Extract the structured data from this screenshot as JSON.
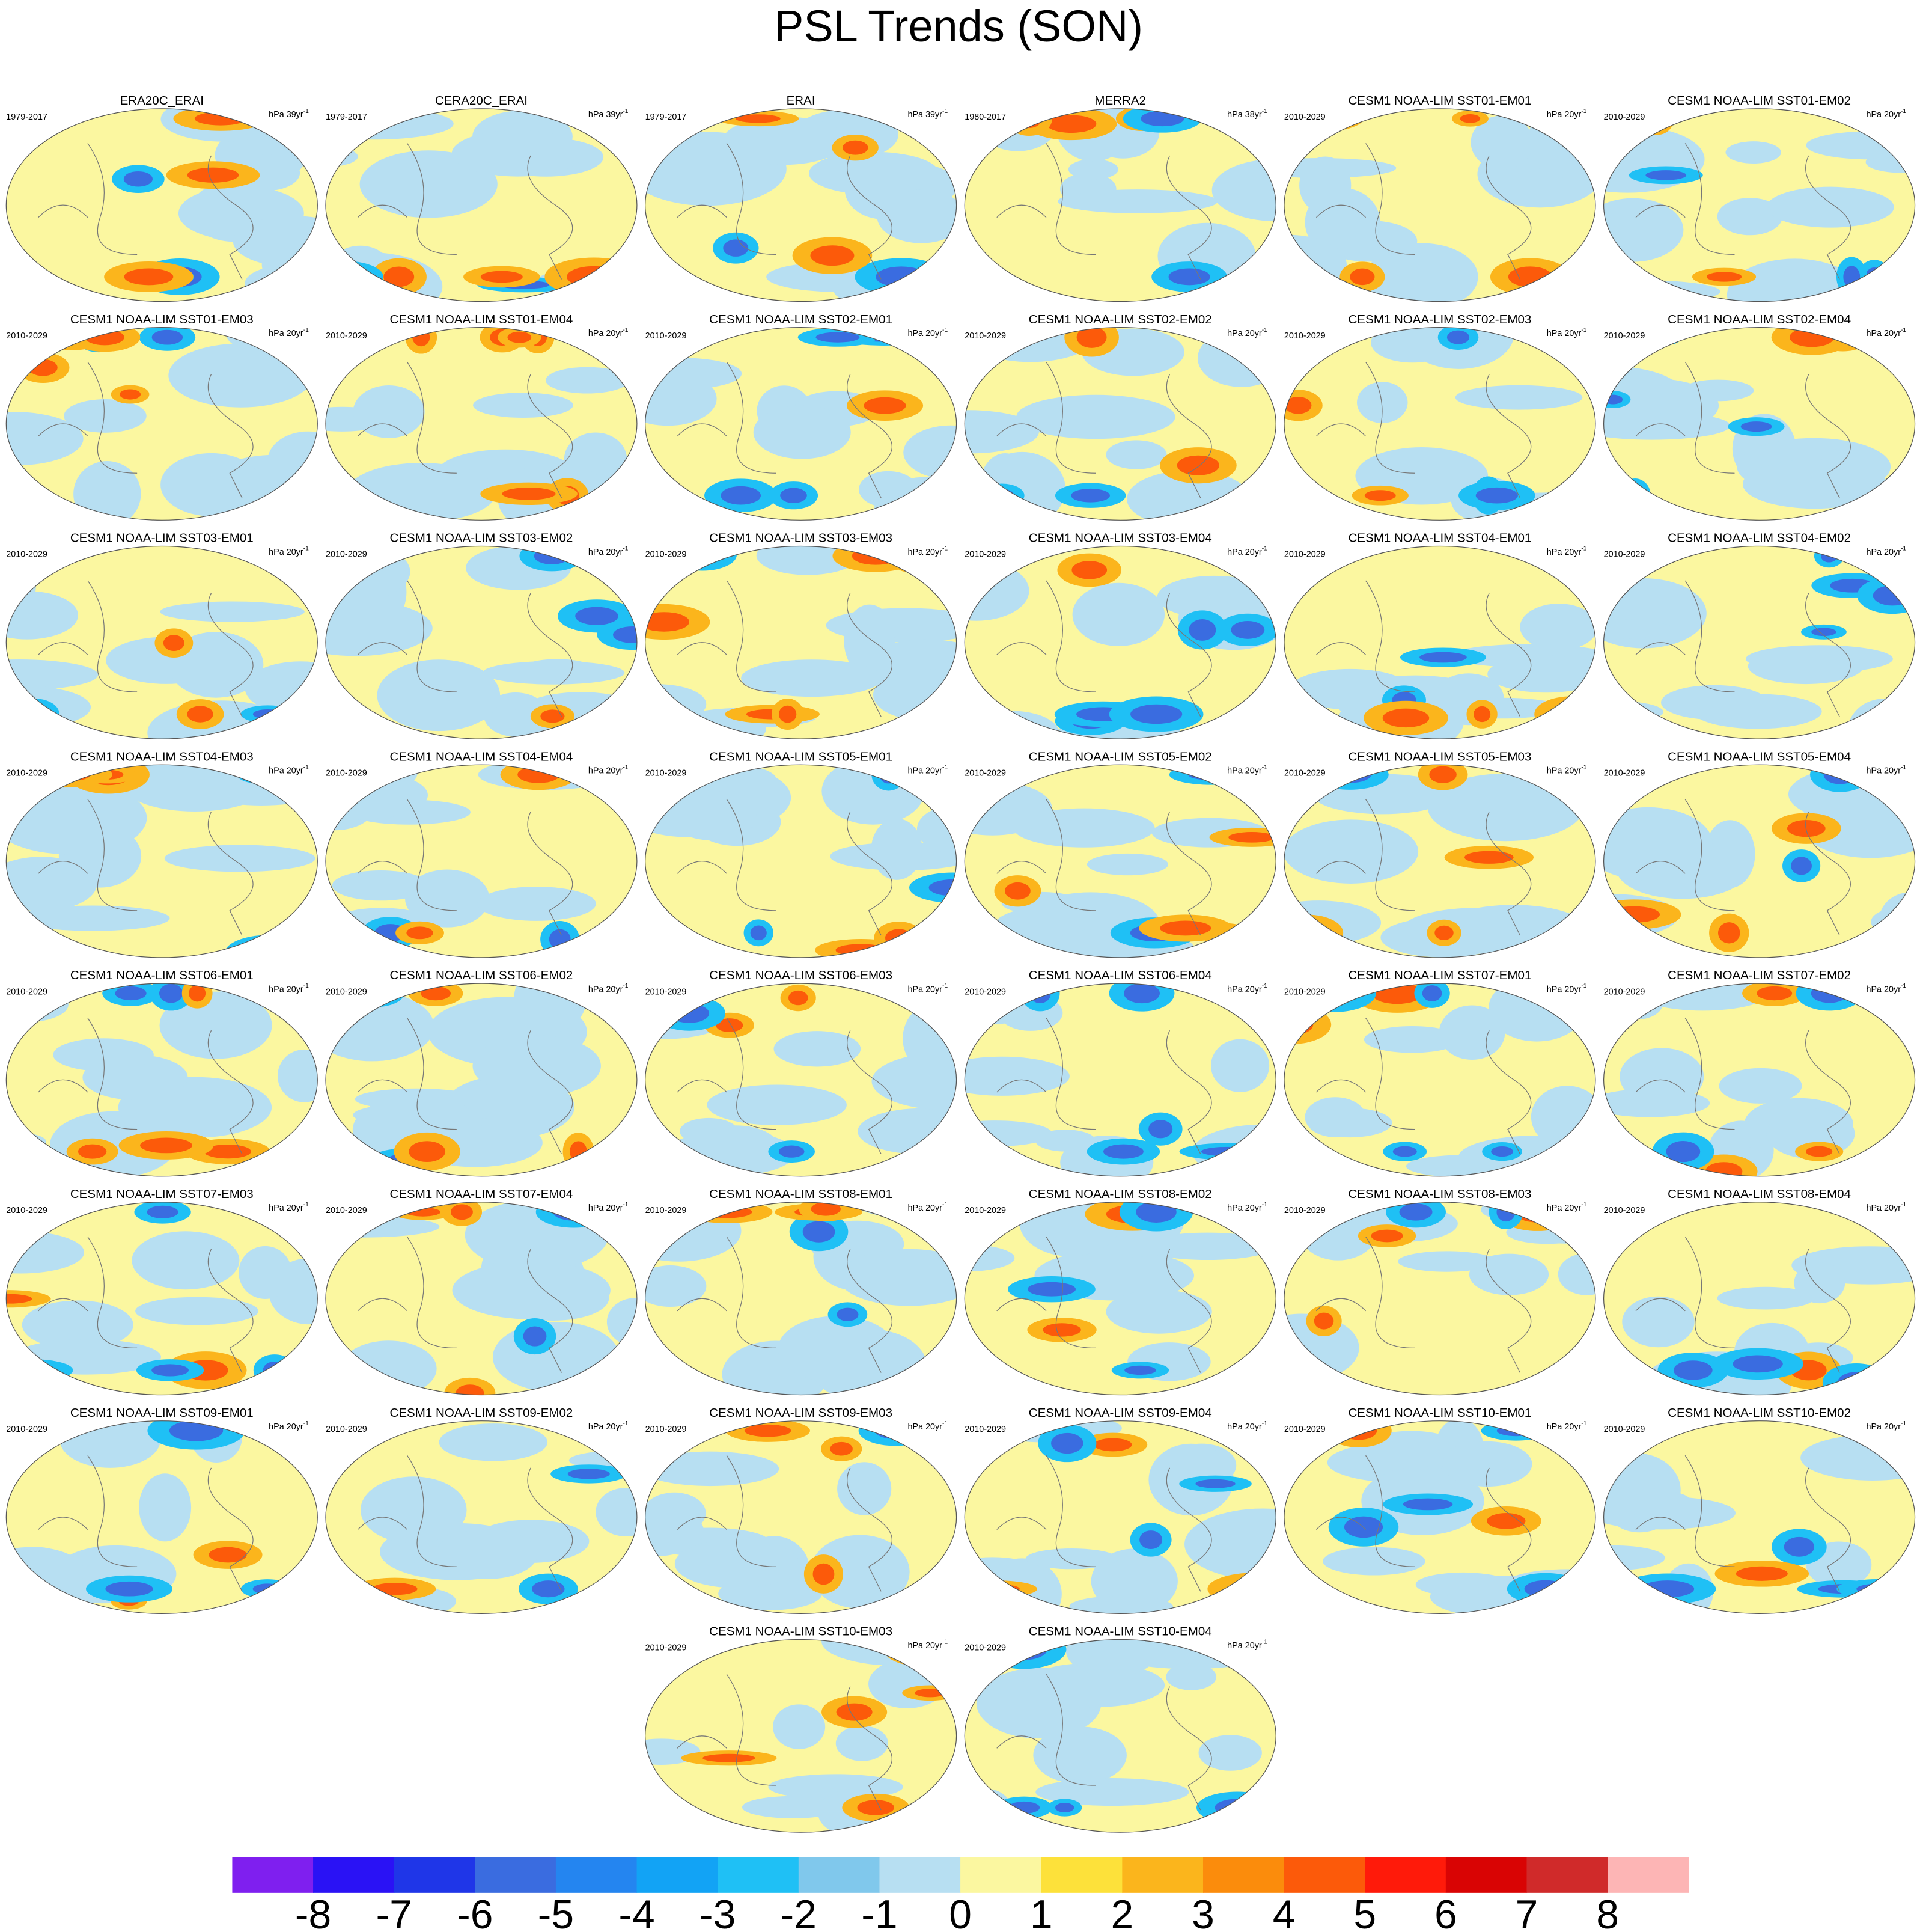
{
  "title": "PSL Trends (SON)",
  "panels": [
    {
      "title": "ERA20C_ERAI",
      "period": "1979-2017",
      "units": "hPa 39yr",
      "exp": "-1"
    },
    {
      "title": "CERA20C_ERAI",
      "period": "1979-2017",
      "units": "hPa 39yr",
      "exp": "-1"
    },
    {
      "title": "ERAI",
      "period": "1979-2017",
      "units": "hPa 39yr",
      "exp": "-1"
    },
    {
      "title": "MERRA2",
      "period": "1980-2017",
      "units": "hPa 38yr",
      "exp": "-1"
    },
    {
      "title": "CESM1 NOAA-LIM SST01-EM01",
      "period": "2010-2029",
      "units": "hPa 20yr",
      "exp": "-1"
    },
    {
      "title": "CESM1 NOAA-LIM SST01-EM02",
      "period": "2010-2029",
      "units": "hPa 20yr",
      "exp": "-1"
    },
    {
      "title": "CESM1 NOAA-LIM SST01-EM03",
      "period": "2010-2029",
      "units": "hPa 20yr",
      "exp": "-1"
    },
    {
      "title": "CESM1 NOAA-LIM SST01-EM04",
      "period": "2010-2029",
      "units": "hPa 20yr",
      "exp": "-1"
    },
    {
      "title": "CESM1 NOAA-LIM SST02-EM01",
      "period": "2010-2029",
      "units": "hPa 20yr",
      "exp": "-1"
    },
    {
      "title": "CESM1 NOAA-LIM SST02-EM02",
      "period": "2010-2029",
      "units": "hPa 20yr",
      "exp": "-1"
    },
    {
      "title": "CESM1 NOAA-LIM SST02-EM03",
      "period": "2010-2029",
      "units": "hPa 20yr",
      "exp": "-1"
    },
    {
      "title": "CESM1 NOAA-LIM SST02-EM04",
      "period": "2010-2029",
      "units": "hPa 20yr",
      "exp": "-1"
    },
    {
      "title": "CESM1 NOAA-LIM SST03-EM01",
      "period": "2010-2029",
      "units": "hPa 20yr",
      "exp": "-1"
    },
    {
      "title": "CESM1 NOAA-LIM SST03-EM02",
      "period": "2010-2029",
      "units": "hPa 20yr",
      "exp": "-1"
    },
    {
      "title": "CESM1 NOAA-LIM SST03-EM03",
      "period": "2010-2029",
      "units": "hPa 20yr",
      "exp": "-1"
    },
    {
      "title": "CESM1 NOAA-LIM SST03-EM04",
      "period": "2010-2029",
      "units": "hPa 20yr",
      "exp": "-1"
    },
    {
      "title": "CESM1 NOAA-LIM SST04-EM01",
      "period": "2010-2029",
      "units": "hPa 20yr",
      "exp": "-1"
    },
    {
      "title": "CESM1 NOAA-LIM SST04-EM02",
      "period": "2010-2029",
      "units": "hPa 20yr",
      "exp": "-1"
    },
    {
      "title": "CESM1 NOAA-LIM SST04-EM03",
      "period": "2010-2029",
      "units": "hPa 20yr",
      "exp": "-1"
    },
    {
      "title": "CESM1 NOAA-LIM SST04-EM04",
      "period": "2010-2029",
      "units": "hPa 20yr",
      "exp": "-1"
    },
    {
      "title": "CESM1 NOAA-LIM SST05-EM01",
      "period": "2010-2029",
      "units": "hPa 20yr",
      "exp": "-1"
    },
    {
      "title": "CESM1 NOAA-LIM SST05-EM02",
      "period": "2010-2029",
      "units": "hPa 20yr",
      "exp": "-1"
    },
    {
      "title": "CESM1 NOAA-LIM SST05-EM03",
      "period": "2010-2029",
      "units": "hPa 20yr",
      "exp": "-1"
    },
    {
      "title": "CESM1 NOAA-LIM SST05-EM04",
      "period": "2010-2029",
      "units": "hPa 20yr",
      "exp": "-1"
    },
    {
      "title": "CESM1 NOAA-LIM SST06-EM01",
      "period": "2010-2029",
      "units": "hPa 20yr",
      "exp": "-1"
    },
    {
      "title": "CESM1 NOAA-LIM SST06-EM02",
      "period": "2010-2029",
      "units": "hPa 20yr",
      "exp": "-1"
    },
    {
      "title": "CESM1 NOAA-LIM SST06-EM03",
      "period": "2010-2029",
      "units": "hPa 20yr",
      "exp": "-1"
    },
    {
      "title": "CESM1 NOAA-LIM SST06-EM04",
      "period": "2010-2029",
      "units": "hPa 20yr",
      "exp": "-1"
    },
    {
      "title": "CESM1 NOAA-LIM SST07-EM01",
      "period": "2010-2029",
      "units": "hPa 20yr",
      "exp": "-1"
    },
    {
      "title": "CESM1 NOAA-LIM SST07-EM02",
      "period": "2010-2029",
      "units": "hPa 20yr",
      "exp": "-1"
    },
    {
      "title": "CESM1 NOAA-LIM SST07-EM03",
      "period": "2010-2029",
      "units": "hPa 20yr",
      "exp": "-1"
    },
    {
      "title": "CESM1 NOAA-LIM SST07-EM04",
      "period": "2010-2029",
      "units": "hPa 20yr",
      "exp": "-1"
    },
    {
      "title": "CESM1 NOAA-LIM SST08-EM01",
      "period": "2010-2029",
      "units": "hPa 20yr",
      "exp": "-1"
    },
    {
      "title": "CESM1 NOAA-LIM SST08-EM02",
      "period": "2010-2029",
      "units": "hPa 20yr",
      "exp": "-1"
    },
    {
      "title": "CESM1 NOAA-LIM SST08-EM03",
      "period": "2010-2029",
      "units": "hPa 20yr",
      "exp": "-1"
    },
    {
      "title": "CESM1 NOAA-LIM SST08-EM04",
      "period": "2010-2029",
      "units": "hPa 20yr",
      "exp": "-1"
    },
    {
      "title": "CESM1 NOAA-LIM SST09-EM01",
      "period": "2010-2029",
      "units": "hPa 20yr",
      "exp": "-1"
    },
    {
      "title": "CESM1 NOAA-LIM SST09-EM02",
      "period": "2010-2029",
      "units": "hPa 20yr",
      "exp": "-1"
    },
    {
      "title": "CESM1 NOAA-LIM SST09-EM03",
      "period": "2010-2029",
      "units": "hPa 20yr",
      "exp": "-1"
    },
    {
      "title": "CESM1 NOAA-LIM SST09-EM04",
      "period": "2010-2029",
      "units": "hPa 20yr",
      "exp": "-1"
    },
    {
      "title": "CESM1 NOAA-LIM SST10-EM01",
      "period": "2010-2029",
      "units": "hPa 20yr",
      "exp": "-1"
    },
    {
      "title": "CESM1 NOAA-LIM SST10-EM02",
      "period": "2010-2029",
      "units": "hPa 20yr",
      "exp": "-1"
    },
    {
      "title": "CESM1 NOAA-LIM SST10-EM03",
      "period": "2010-2029",
      "units": "hPa 20yr",
      "exp": "-1"
    },
    {
      "title": "CESM1 NOAA-LIM SST10-EM04",
      "period": "2010-2029",
      "units": "hPa 20yr",
      "exp": "-1"
    }
  ],
  "colorbar": {
    "colors": [
      "#7f1fef",
      "#2a12f5",
      "#1f36e8",
      "#3a6ce0",
      "#2485f0",
      "#12a3f5",
      "#1fc0f5",
      "#80c8ec",
      "#b7dff2",
      "#fbf7a0",
      "#fde13a",
      "#fbb51c",
      "#fb8c0c",
      "#fc5a0a",
      "#ff1a0a",
      "#d90404",
      "#d02a2a",
      "#fdb5b5"
    ],
    "ticks": [
      -8,
      -7,
      -6,
      -5,
      -4,
      -3,
      -2,
      -1,
      0,
      1,
      2,
      3,
      4,
      5,
      6,
      7,
      8
    ]
  }
}
